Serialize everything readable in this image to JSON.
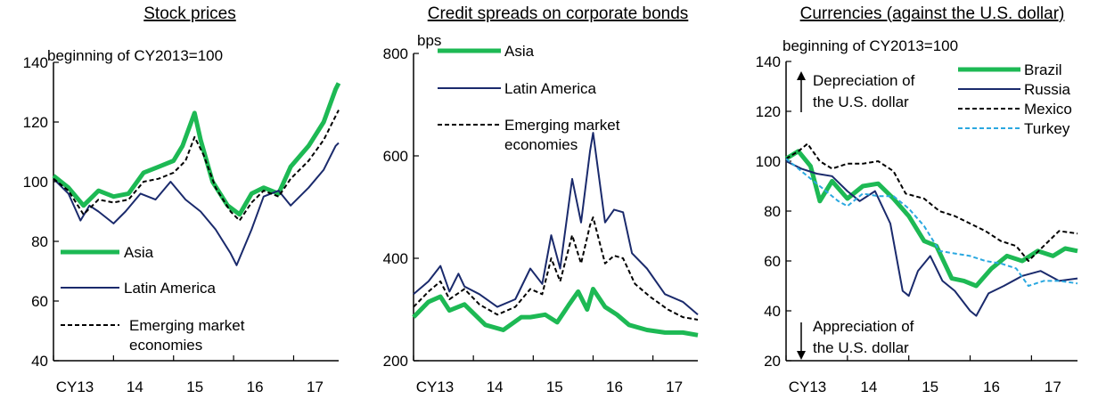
{
  "colors": {
    "green": "#1db954",
    "navy": "#1a2a6c",
    "black": "#000000",
    "cyan": "#2aa8e0"
  },
  "chart_data": [
    {
      "type": "line",
      "title": "Stock prices",
      "unit_note": "beginning of CY2013=100",
      "yticks": [
        40,
        60,
        80,
        100,
        120,
        140
      ],
      "ylim": [
        40,
        140
      ],
      "xlim": [
        2013.0,
        2017.75
      ],
      "xticks": [
        {
          "x": 2013.0,
          "label": "CY13"
        },
        {
          "x": 2014.0,
          "label": "14"
        },
        {
          "x": 2015.0,
          "label": "15"
        },
        {
          "x": 2016.0,
          "label": "16"
        },
        {
          "x": 2017.0,
          "label": "17"
        }
      ],
      "legend_position": "bottom-left",
      "series": [
        {
          "name": "Asia",
          "style": "thick",
          "color": "#1db954",
          "x": [
            2013.0,
            2013.25,
            2013.5,
            2013.75,
            2014.0,
            2014.25,
            2014.5,
            2014.75,
            2015.0,
            2015.15,
            2015.35,
            2015.45,
            2015.65,
            2015.9,
            2016.1,
            2016.3,
            2016.5,
            2016.75,
            2016.95,
            2017.25,
            2017.5,
            2017.7,
            2017.75
          ],
          "values": [
            102,
            98,
            92,
            97,
            95,
            96,
            103,
            105,
            107,
            112,
            123,
            114,
            100,
            92,
            89,
            96,
            98,
            96,
            105,
            112,
            120,
            131,
            133
          ]
        },
        {
          "name": "Latin America",
          "style": "solid",
          "color": "#1a2a6c",
          "x": [
            2013.0,
            2013.25,
            2013.45,
            2013.6,
            2013.75,
            2014.0,
            2014.2,
            2014.45,
            2014.7,
            2014.95,
            2015.2,
            2015.45,
            2015.7,
            2015.95,
            2016.05,
            2016.3,
            2016.5,
            2016.75,
            2016.95,
            2017.25,
            2017.5,
            2017.7,
            2017.75
          ],
          "values": [
            101,
            96,
            87,
            92,
            90,
            86,
            90,
            96,
            94,
            100,
            94,
            90,
            84,
            76,
            72,
            84,
            95,
            97,
            92,
            98,
            104,
            112,
            113
          ]
        },
        {
          "name": "Emerging market economies",
          "style": "dashed",
          "color": "#000000",
          "x": [
            2013.0,
            2013.25,
            2013.5,
            2013.75,
            2014.0,
            2014.25,
            2014.5,
            2014.75,
            2015.0,
            2015.2,
            2015.35,
            2015.5,
            2015.7,
            2015.95,
            2016.1,
            2016.3,
            2016.5,
            2016.75,
            2016.95,
            2017.25,
            2017.5,
            2017.7,
            2017.75
          ],
          "values": [
            101,
            97,
            89,
            94,
            93,
            94,
            100,
            101,
            103,
            107,
            115,
            109,
            98,
            90,
            87,
            93,
            97,
            95,
            101,
            107,
            114,
            122,
            124
          ]
        }
      ]
    },
    {
      "type": "line",
      "title": "Credit spreads on corporate bonds",
      "unit_note": "bps",
      "yticks": [
        200,
        400,
        600,
        800
      ],
      "ylim": [
        200,
        800
      ],
      "xlim": [
        2013.0,
        2017.75
      ],
      "xticks": [
        {
          "x": 2013.0,
          "label": "CY13"
        },
        {
          "x": 2014.0,
          "label": "14"
        },
        {
          "x": 2015.0,
          "label": "15"
        },
        {
          "x": 2016.0,
          "label": "16"
        },
        {
          "x": 2017.0,
          "label": "17"
        }
      ],
      "legend_position": "top-left",
      "series": [
        {
          "name": "Asia",
          "style": "thick",
          "color": "#1db954",
          "x": [
            2013.0,
            2013.25,
            2013.45,
            2013.6,
            2013.85,
            2014.2,
            2014.5,
            2014.8,
            2014.95,
            2015.2,
            2015.4,
            2015.6,
            2015.75,
            2015.9,
            2016.0,
            2016.2,
            2016.4,
            2016.6,
            2016.9,
            2017.2,
            2017.5,
            2017.75
          ],
          "values": [
            285,
            315,
            325,
            298,
            310,
            270,
            260,
            285,
            285,
            290,
            275,
            310,
            335,
            300,
            340,
            305,
            290,
            270,
            260,
            255,
            255,
            250
          ]
        },
        {
          "name": "Latin America",
          "style": "solid",
          "color": "#1a2a6c",
          "x": [
            2013.0,
            2013.25,
            2013.45,
            2013.6,
            2013.75,
            2013.85,
            2014.1,
            2014.4,
            2014.7,
            2014.95,
            2015.15,
            2015.3,
            2015.45,
            2015.65,
            2015.8,
            2015.95,
            2016.0,
            2016.2,
            2016.35,
            2016.5,
            2016.65,
            2016.9,
            2017.2,
            2017.5,
            2017.75
          ],
          "values": [
            330,
            355,
            385,
            335,
            370,
            345,
            330,
            305,
            320,
            380,
            350,
            445,
            380,
            555,
            470,
            610,
            645,
            470,
            495,
            490,
            410,
            380,
            330,
            315,
            290
          ]
        },
        {
          "name": "Emerging market economies",
          "style": "dashed",
          "color": "#000000",
          "x": [
            2013.0,
            2013.25,
            2013.45,
            2013.6,
            2013.85,
            2014.1,
            2014.4,
            2014.7,
            2014.95,
            2015.15,
            2015.3,
            2015.45,
            2015.65,
            2015.8,
            2015.95,
            2016.0,
            2016.2,
            2016.35,
            2016.5,
            2016.7,
            2016.95,
            2017.25,
            2017.5,
            2017.75
          ],
          "values": [
            305,
            335,
            355,
            320,
            340,
            310,
            290,
            305,
            340,
            330,
            400,
            355,
            445,
            390,
            465,
            480,
            390,
            405,
            400,
            350,
            325,
            300,
            285,
            280
          ]
        }
      ]
    },
    {
      "type": "line",
      "title": "Currencies (against the U.S. dollar)",
      "unit_note": "beginning of CY2013=100",
      "yticks": [
        20,
        40,
        60,
        80,
        100,
        120,
        140
      ],
      "ylim": [
        20,
        140
      ],
      "xlim": [
        2013.0,
        2017.75
      ],
      "xticks": [
        {
          "x": 2013.0,
          "label": "CY13"
        },
        {
          "x": 2014.0,
          "label": "14"
        },
        {
          "x": 2015.0,
          "label": "15"
        },
        {
          "x": 2016.0,
          "label": "16"
        },
        {
          "x": 2017.0,
          "label": "17"
        }
      ],
      "legend_position": "top-right",
      "annotations": {
        "up": [
          "Depreciation of",
          "the U.S. dollar"
        ],
        "down": [
          "Appreciation of",
          "the U.S. dollar"
        ]
      },
      "series": [
        {
          "name": "Brazil",
          "style": "thick",
          "color": "#1db954",
          "x": [
            2013.0,
            2013.2,
            2013.4,
            2013.55,
            2013.75,
            2014.0,
            2014.25,
            2014.5,
            2014.75,
            2015.0,
            2015.25,
            2015.45,
            2015.7,
            2015.9,
            2016.1,
            2016.35,
            2016.6,
            2016.85,
            2017.1,
            2017.35,
            2017.55,
            2017.75
          ],
          "values": [
            101,
            104,
            98,
            84,
            92,
            85,
            90,
            91,
            85,
            78,
            68,
            66,
            53,
            52,
            50,
            57,
            62,
            60,
            64,
            62,
            65,
            64
          ]
        },
        {
          "name": "Russia",
          "style": "solid",
          "color": "#1a2a6c",
          "x": [
            2013.0,
            2013.25,
            2013.5,
            2013.75,
            2014.0,
            2014.2,
            2014.45,
            2014.7,
            2014.9,
            2015.0,
            2015.15,
            2015.35,
            2015.55,
            2015.75,
            2016.0,
            2016.1,
            2016.3,
            2016.55,
            2016.85,
            2017.15,
            2017.45,
            2017.75
          ],
          "values": [
            100,
            97,
            95,
            94,
            88,
            84,
            88,
            75,
            48,
            46,
            56,
            62,
            52,
            48,
            40,
            38,
            47,
            50,
            54,
            56,
            52,
            53
          ]
        },
        {
          "name": "Mexico",
          "style": "dashed",
          "color": "#000000",
          "x": [
            2013.0,
            2013.2,
            2013.35,
            2013.55,
            2013.75,
            2014.0,
            2014.25,
            2014.5,
            2014.75,
            2014.95,
            2015.25,
            2015.5,
            2015.75,
            2016.0,
            2016.25,
            2016.5,
            2016.75,
            2016.95,
            2017.2,
            2017.45,
            2017.75
          ],
          "values": [
            101,
            104,
            107,
            100,
            97,
            99,
            99,
            100,
            96,
            87,
            85,
            80,
            78,
            75,
            72,
            68,
            66,
            60,
            66,
            72,
            71
          ]
        },
        {
          "name": "Turkey",
          "style": "dashed",
          "color": "#2aa8e0",
          "x": [
            2013.0,
            2013.2,
            2013.4,
            2013.6,
            2013.85,
            2014.0,
            2014.25,
            2014.5,
            2014.75,
            2015.0,
            2015.25,
            2015.5,
            2015.75,
            2016.0,
            2016.25,
            2016.5,
            2016.75,
            2016.95,
            2017.2,
            2017.45,
            2017.75
          ],
          "values": [
            101,
            97,
            93,
            89,
            84,
            82,
            87,
            86,
            86,
            81,
            74,
            64,
            63,
            62,
            60,
            59,
            57,
            50,
            52,
            52,
            51
          ]
        }
      ]
    }
  ]
}
